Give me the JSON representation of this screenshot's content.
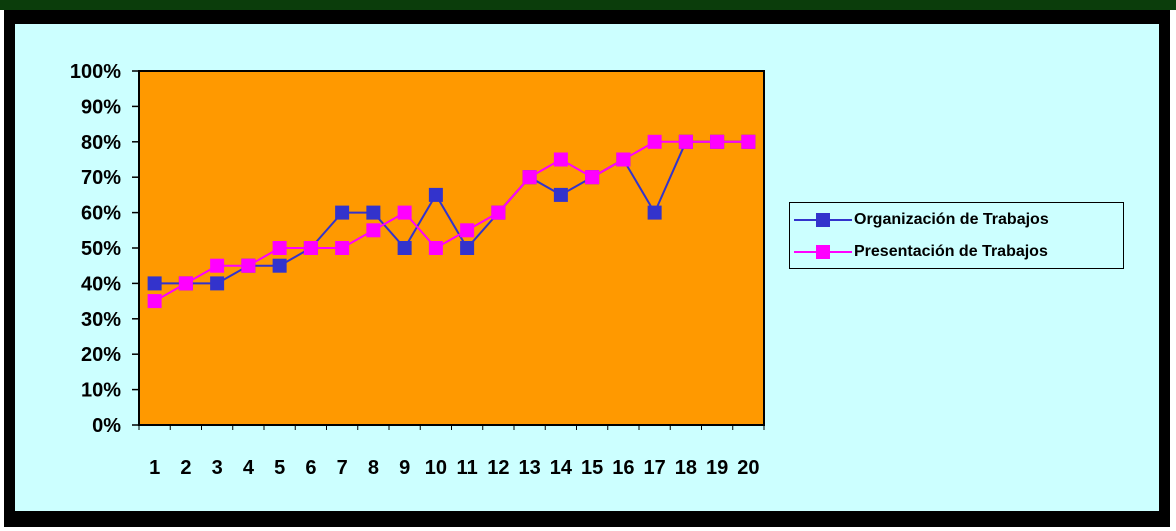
{
  "chart_data": {
    "type": "line",
    "x": [
      "1",
      "2",
      "3",
      "4",
      "5",
      "6",
      "7",
      "8",
      "9",
      "10",
      "11",
      "12",
      "13",
      "14",
      "15",
      "16",
      "17",
      "18",
      "19",
      "20"
    ],
    "ylim": [
      0,
      100
    ],
    "y_ticks": [
      "0%",
      "10%",
      "20%",
      "30%",
      "40%",
      "50%",
      "60%",
      "70%",
      "80%",
      "90%",
      "100%"
    ],
    "grid": false,
    "legend_position": "right",
    "series": [
      {
        "name": "Organización de Trabajos",
        "color": "#3333cc",
        "values": [
          40,
          40,
          40,
          45,
          45,
          50,
          60,
          60,
          50,
          65,
          50,
          60,
          70,
          65,
          70,
          75,
          60,
          80,
          80,
          80
        ]
      },
      {
        "name": "Presentación de Trabajos",
        "color": "#ff00ff",
        "values": [
          35,
          40,
          45,
          45,
          50,
          50,
          50,
          55,
          60,
          50,
          55,
          60,
          70,
          75,
          70,
          75,
          80,
          80,
          80,
          80
        ]
      }
    ]
  },
  "colors": {
    "plot_background": "#ff9900",
    "chart_background": "#ccffff"
  }
}
